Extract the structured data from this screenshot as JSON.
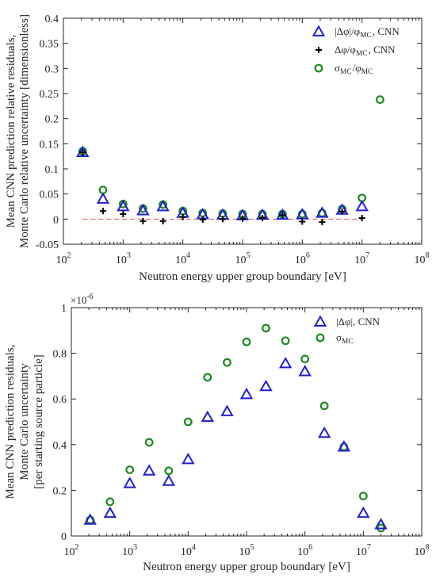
{
  "chart_data": [
    {
      "type": "scatter",
      "xscale": "log",
      "xlim": [
        100,
        100000000
      ],
      "ylim": [
        -0.05,
        0.4
      ],
      "xticks": [
        "10^2",
        "10^3",
        "10^4",
        "10^5",
        "10^6",
        "10^7",
        "10^8"
      ],
      "yticks": [
        "-0.05",
        "0",
        "0.05",
        "0.1",
        "0.15",
        "0.2",
        "0.25",
        "0.3",
        "0.35",
        "0.4"
      ],
      "ylabel": [
        "Mean CNN prediction relative residuals,",
        "Monte Carlo relative uncertainty [dimensionless]"
      ],
      "xlabel": "Neutron energy upper group boundary [eV]",
      "grid": false,
      "legend_position": "top-right",
      "reference_line": {
        "y": 0,
        "style": "dashed",
        "color": "#e05050"
      },
      "series": [
        {
          "name": "|Δφ|/φ_MC, CNN",
          "marker": "triangle",
          "color": "#1f1fd0",
          "x": [
            210,
            460,
            1000,
            2150,
            4650,
            10000,
            21500,
            46500,
            100000,
            215000,
            465000,
            1000000,
            2150000,
            4650000,
            10000000
          ],
          "y": [
            0.133,
            0.04,
            0.025,
            0.017,
            0.025,
            0.012,
            0.009,
            0.008,
            0.007,
            0.008,
            0.008,
            0.009,
            0.012,
            0.018,
            0.025
          ]
        },
        {
          "name": "Δφ/φ_MC, CNN",
          "marker": "plus",
          "color": "#000000",
          "x": [
            210,
            460,
            1000,
            2150,
            4650,
            10000,
            21500,
            46500,
            100000,
            215000,
            465000,
            1000000,
            2150000,
            4650000,
            10000000
          ],
          "y": [
            0.133,
            0.016,
            0.01,
            -0.004,
            -0.004,
            0.004,
            -0.001,
            0.0,
            0.001,
            0.002,
            0.008,
            -0.005,
            -0.006,
            0.015,
            0.002
          ]
        },
        {
          "name": "σ_MC/φ_MC",
          "marker": "circle",
          "color": "#1a8a1a",
          "x": [
            210,
            460,
            1000,
            2150,
            4650,
            10000,
            21500,
            46500,
            100000,
            215000,
            465000,
            1000000,
            2150000,
            4650000,
            10000000,
            20000000
          ],
          "y": [
            0.135,
            0.058,
            0.03,
            0.021,
            0.029,
            0.016,
            0.012,
            0.011,
            0.01,
            0.01,
            0.01,
            0.01,
            0.012,
            0.02,
            0.042,
            0.238
          ]
        }
      ]
    },
    {
      "type": "scatter",
      "xscale": "log",
      "xlim": [
        100,
        100000000
      ],
      "ylim": [
        0,
        1
      ],
      "xticks": [
        "10^2",
        "10^3",
        "10^4",
        "10^5",
        "10^6",
        "10^7",
        "10^8"
      ],
      "yticks": [
        "0",
        "0.2",
        "0.4",
        "0.6",
        "0.8",
        "1"
      ],
      "yscale_multiplier": "×10^-6",
      "ylabel": [
        "Mean CNN prediction  residuals,",
        "Monte Carlo uncertainty",
        "[per starting source particle]"
      ],
      "xlabel": "Neutron energy upper group boundary [eV]",
      "grid": false,
      "legend_position": "top-right",
      "series": [
        {
          "name": "|Δφ|, CNN",
          "marker": "triangle",
          "color": "#1f1fd0",
          "x": [
            210,
            460,
            1000,
            2150,
            4650,
            10000,
            21500,
            46500,
            100000,
            215000,
            465000,
            1000000,
            2150000,
            4650000,
            10000000,
            20000000
          ],
          "y": [
            0.07,
            0.1,
            0.23,
            0.285,
            0.24,
            0.335,
            0.52,
            0.545,
            0.62,
            0.655,
            0.755,
            0.72,
            0.45,
            0.39,
            0.1,
            0.05
          ]
        },
        {
          "name": "σ_MC",
          "marker": "circle",
          "color": "#1a8a1a",
          "x": [
            210,
            460,
            1000,
            2150,
            4650,
            10000,
            21500,
            46500,
            100000,
            215000,
            465000,
            1000000,
            2150000,
            4650000,
            10000000,
            20000000
          ],
          "y": [
            0.07,
            0.15,
            0.29,
            0.41,
            0.285,
            0.5,
            0.695,
            0.76,
            0.85,
            0.91,
            0.855,
            0.775,
            0.57,
            0.39,
            0.175,
            0.035
          ]
        }
      ]
    }
  ]
}
